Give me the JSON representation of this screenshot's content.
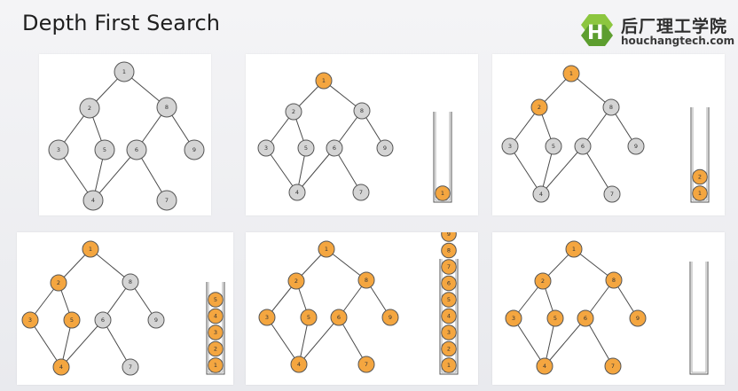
{
  "header": {
    "title": "Depth First Search",
    "logo_cn": "后厂理工学院",
    "logo_en": "houchangtech.com"
  },
  "colors": {
    "visited": "#f4a640",
    "unvisited": "#d4d4d4",
    "node_stroke": "#555555",
    "edge": "#4a4a4a"
  },
  "graph": {
    "nodes": [
      "1",
      "2",
      "8",
      "3",
      "5",
      "6",
      "9",
      "4",
      "7"
    ],
    "edges": [
      [
        "1",
        "2"
      ],
      [
        "1",
        "8"
      ],
      [
        "2",
        "3"
      ],
      [
        "2",
        "5"
      ],
      [
        "8",
        "6"
      ],
      [
        "8",
        "9"
      ],
      [
        "3",
        "4"
      ],
      [
        "5",
        "4"
      ],
      [
        "6",
        "4"
      ],
      [
        "6",
        "7"
      ]
    ]
  },
  "panels": [
    {
      "visited": [],
      "stack": null
    },
    {
      "visited": [
        "1"
      ],
      "stack": [
        "1"
      ]
    },
    {
      "visited": [
        "1",
        "2"
      ],
      "stack": [
        "1",
        "2"
      ]
    },
    {
      "visited": [
        "1",
        "2",
        "3",
        "4",
        "5"
      ],
      "stack": [
        "1",
        "2",
        "3",
        "4",
        "5"
      ]
    },
    {
      "visited": [
        "1",
        "2",
        "3",
        "4",
        "5",
        "6",
        "7",
        "8",
        "9"
      ],
      "stack": [
        "1",
        "2",
        "3",
        "4",
        "5",
        "6",
        "7",
        "8",
        "9"
      ]
    },
    {
      "visited": [
        "1",
        "2",
        "3",
        "4",
        "5",
        "6",
        "7",
        "8",
        "9"
      ],
      "stack": []
    }
  ]
}
